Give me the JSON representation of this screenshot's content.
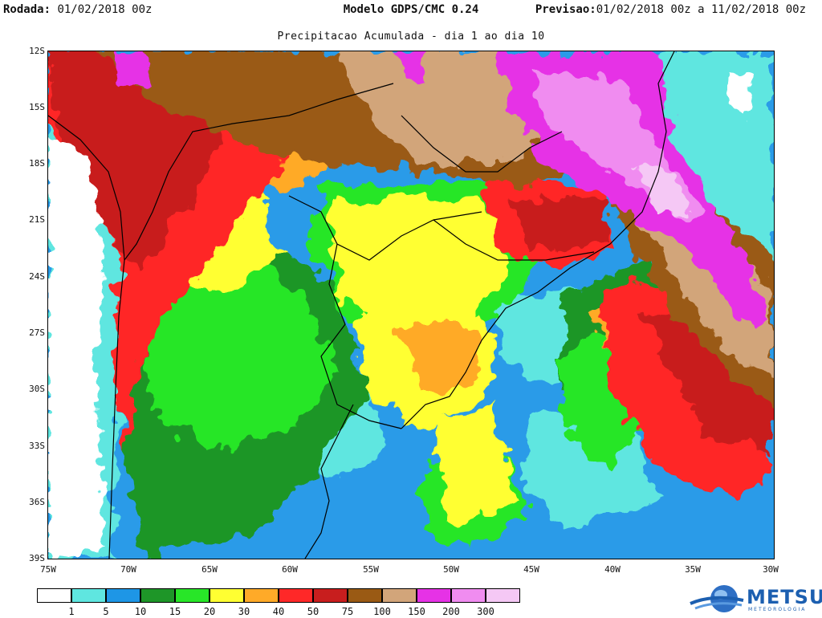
{
  "header": {
    "rodada_label": "Rodada:",
    "rodada_value": "01/02/2018 00z",
    "model": "Modelo GDPS/CMC 0.24",
    "previsao_label": "Previsao:",
    "previsao_value": "01/02/2018 00z a 11/02/2018 00z"
  },
  "subtitle": "Precipitacao Acumulada - dia 1 ao dia 10",
  "map": {
    "lat_labels": [
      "12S",
      "15S",
      "18S",
      "21S",
      "24S",
      "27S",
      "30S",
      "33S",
      "36S",
      "39S"
    ],
    "lon_labels": [
      "75W",
      "70W",
      "65W",
      "60W",
      "55W",
      "50W",
      "45W",
      "40W",
      "35W",
      "30W"
    ],
    "land_outline_color": "#000000",
    "ocean_base_color": "#2a9be8"
  },
  "legend": {
    "labels": [
      "1",
      "5",
      "10",
      "15",
      "20",
      "30",
      "40",
      "50",
      "75",
      "100",
      "150",
      "200",
      "300"
    ],
    "colors": [
      "#ffffff",
      "#5fe6e0",
      "#1e96e6",
      "#1e9628",
      "#28e628",
      "#ffff32",
      "#ffaa28",
      "#ff2828",
      "#c81e1e",
      "#9a5a14",
      "#d2a57a",
      "#e632e6",
      "#f08cf0",
      "#f5c8f5"
    ]
  },
  "logo": {
    "name": "METSUL",
    "tagline": "METEOROLOGIA"
  }
}
